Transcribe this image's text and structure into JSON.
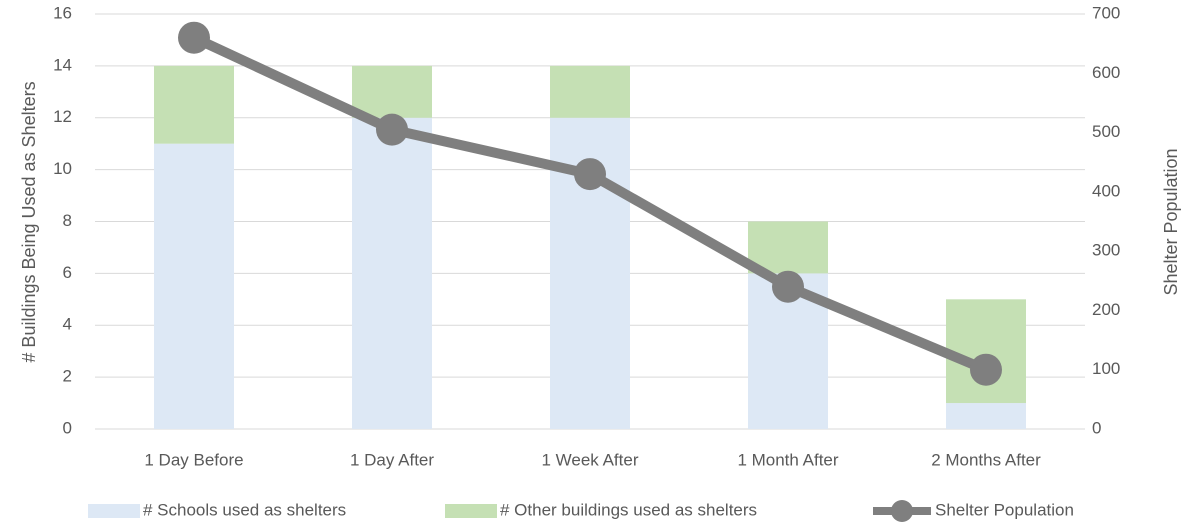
{
  "chart_data": {
    "type": "bar",
    "stacked": true,
    "categories": [
      "1 Day Before",
      "1 Day After",
      "1 Week After",
      "1 Month After",
      "2 Months After"
    ],
    "series": [
      {
        "name": "# Schools used as shelters",
        "type": "bar",
        "color": "#dde8f5",
        "values": [
          11,
          12,
          12,
          6,
          1
        ]
      },
      {
        "name": "# Other buildings used as shelters",
        "type": "bar",
        "color": "#c5e0b4",
        "values": [
          3,
          2,
          2,
          2,
          4
        ]
      },
      {
        "name": "Shelter Population",
        "type": "line",
        "axis": "y2",
        "color": "#7f7f7f",
        "values": [
          660,
          505,
          430,
          240,
          100
        ]
      }
    ],
    "ylabel": "# Buildings Being Used as Shelters",
    "y2label": "Shelter Population",
    "ylim": [
      0,
      16
    ],
    "yticks": [
      0,
      2,
      4,
      6,
      8,
      10,
      12,
      14,
      16
    ],
    "y2lim": [
      0,
      700
    ],
    "y2ticks": [
      0,
      100,
      200,
      300,
      400,
      500,
      600,
      700
    ],
    "grid": true,
    "legend": "bottom"
  }
}
